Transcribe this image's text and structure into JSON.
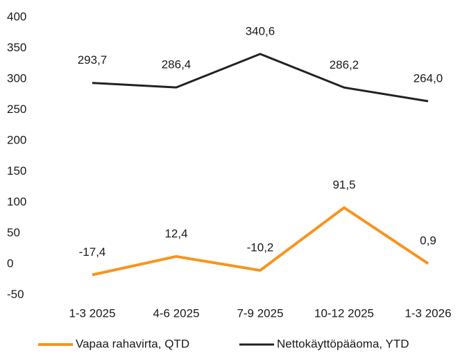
{
  "chart_data": {
    "type": "line",
    "categories": [
      "1-3 2025",
      "4-6 2025",
      "7-9 2025",
      "10-12 2025",
      "1-3 2026"
    ],
    "series": [
      {
        "name": "Vapaa rahavirta, QTD",
        "color": "#f7941d",
        "values": [
          -17.4,
          12.4,
          -10.2,
          91.5,
          0.9
        ],
        "value_labels": [
          "-17,4",
          "12,4",
          "-10,2",
          "91,5",
          "0,9"
        ]
      },
      {
        "name": "Nettokäyttöpääoma, YTD",
        "color": "#222222",
        "values": [
          293.7,
          286.4,
          340.6,
          286.2,
          264.0
        ],
        "value_labels": [
          "293,7",
          "286,4",
          "340,6",
          "286,2",
          "264,0"
        ]
      }
    ],
    "ylim": [
      -50,
      400
    ],
    "yticks": [
      -50,
      0,
      50,
      100,
      150,
      200,
      250,
      300,
      350,
      400
    ],
    "grid": false,
    "legend": "bottom"
  }
}
